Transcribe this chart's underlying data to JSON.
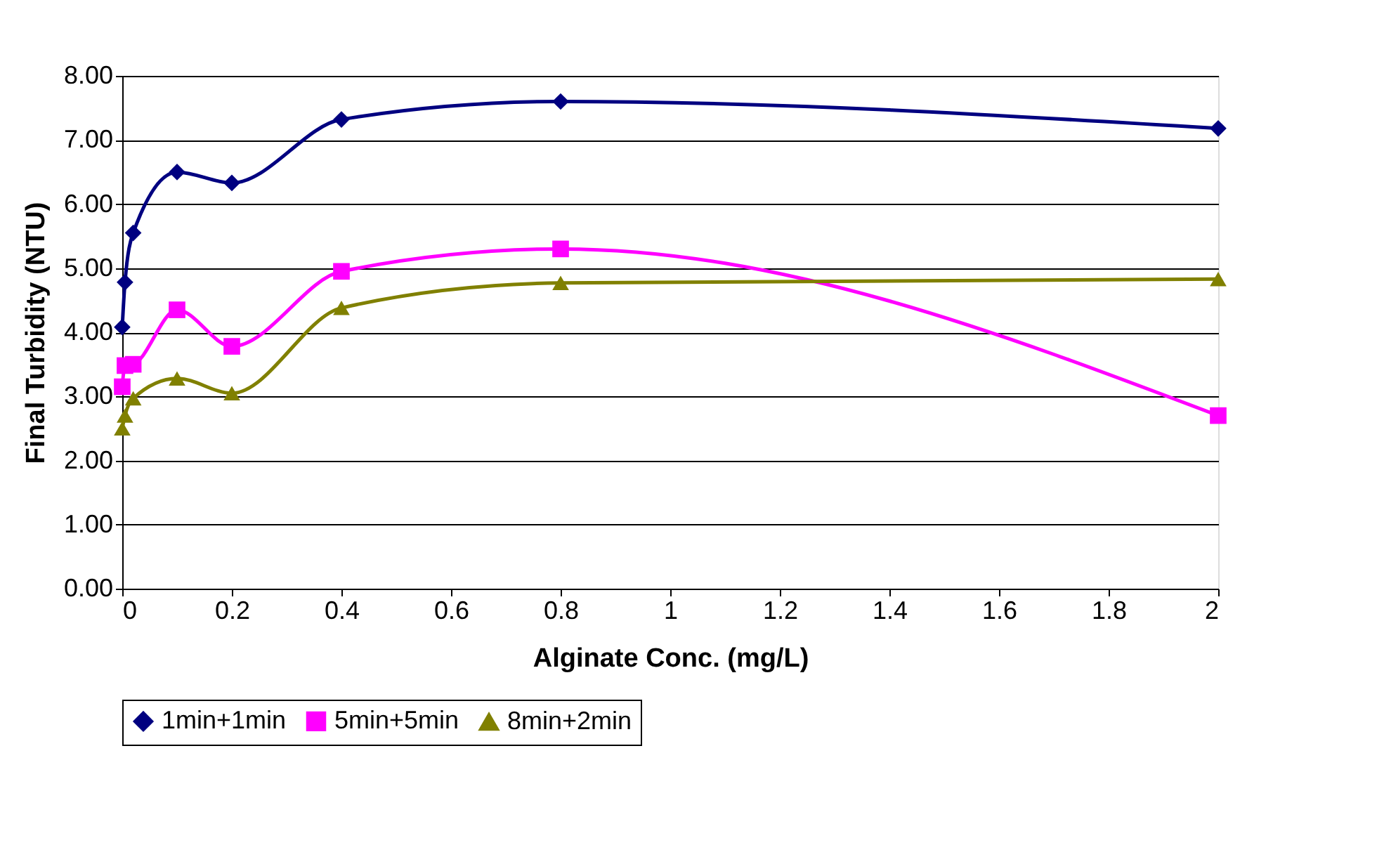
{
  "chart_data": {
    "type": "line",
    "xlabel": "Alginate Conc. (mg/L)",
    "ylabel": "Final Turbidity (NTU)",
    "x": [
      0,
      0.005,
      0.02,
      0.1,
      0.2,
      0.4,
      0.8,
      2
    ],
    "series": [
      {
        "name": "1min+1min",
        "color": "#000080",
        "marker": "diamond",
        "values": [
          4.08,
          4.78,
          5.55,
          6.5,
          6.33,
          7.32,
          7.6,
          7.18
        ]
      },
      {
        "name": "5min+5min",
        "color": "#ff00ff",
        "marker": "square",
        "values": [
          3.15,
          3.48,
          3.5,
          4.35,
          3.78,
          4.95,
          5.3,
          2.7
        ]
      },
      {
        "name": "8min+2min",
        "color": "#808000",
        "marker": "triangle",
        "values": [
          2.5,
          2.7,
          2.97,
          3.28,
          3.05,
          4.38,
          4.77,
          4.83
        ]
      }
    ],
    "xlim": [
      0,
      2
    ],
    "xticks": [
      0,
      0.2,
      0.4,
      0.6,
      0.8,
      1,
      1.2,
      1.4,
      1.6,
      1.8,
      2
    ],
    "ylim": [
      0,
      8
    ],
    "yticks": [
      {
        "value": 0,
        "label": "0.00"
      },
      {
        "value": 1,
        "label": "1.00"
      },
      {
        "value": 2,
        "label": "2.00"
      },
      {
        "value": 3,
        "label": "3.00"
      },
      {
        "value": 4,
        "label": "4.00"
      },
      {
        "value": 5,
        "label": "5.00"
      },
      {
        "value": 6,
        "label": "6.00"
      },
      {
        "value": 7,
        "label": "7.00"
      },
      {
        "value": 8,
        "label": "8.00"
      }
    ],
    "grid": "y",
    "legend": "bottom"
  }
}
